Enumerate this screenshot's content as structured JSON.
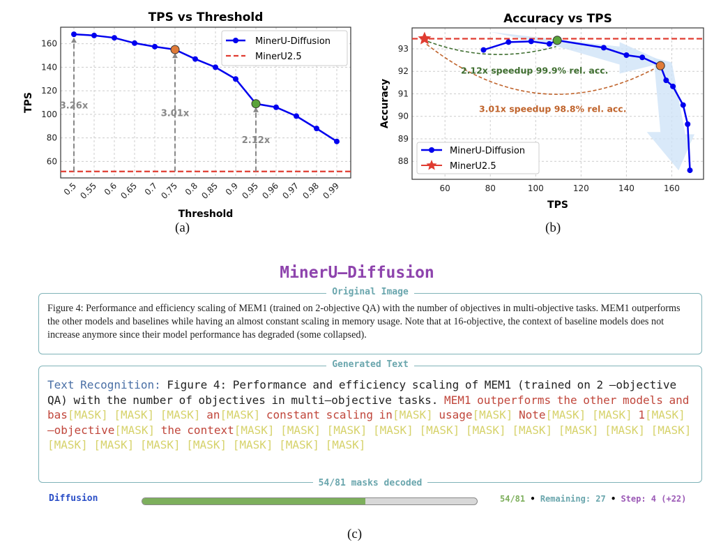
{
  "chart_data": [
    {
      "type": "line",
      "title": "TPS vs Threshold",
      "xlabel": "Threshold",
      "ylabel": "TPS",
      "categories": [
        "0.5",
        "0.55",
        "0.6",
        "0.65",
        "0.7",
        "0.75",
        "0.8",
        "0.85",
        "0.9",
        "0.95",
        "0.96",
        "0.97",
        "0.98",
        "0.99"
      ],
      "series": [
        {
          "name": "MinerU-Diffusion",
          "values": [
            168,
            167,
            165,
            160.5,
            157.5,
            155,
            147,
            140,
            130,
            109,
            106,
            98.5,
            88,
            77
          ],
          "color": "#0000ee"
        }
      ],
      "baseline": {
        "name": "MinerU2.5",
        "value": 51.5,
        "color": "#e03c31"
      },
      "ylim": [
        46,
        174
      ],
      "yticks": [
        60,
        80,
        100,
        120,
        140,
        160
      ],
      "grid": true,
      "legend": "top-right",
      "highlights": [
        {
          "category": "0.5",
          "label": "3.26x",
          "color": "#2222ee"
        },
        {
          "category": "0.75",
          "label": "3.01x",
          "color": "#e07b39"
        },
        {
          "category": "0.95",
          "label": "2.12x",
          "color": "#5aa33a"
        }
      ],
      "caption": "(a)"
    },
    {
      "type": "line",
      "title": "Accuracy vs TPS",
      "xlabel": "TPS",
      "ylabel": "Accuracy",
      "series": [
        {
          "name": "MinerU-Diffusion",
          "x": [
            77,
            88,
            98,
            106,
            109.5,
            130,
            140,
            147,
            155,
            157.5,
            160.5,
            165,
            167,
            168
          ],
          "y": [
            92.95,
            93.3,
            93.33,
            93.22,
            93.38,
            93.05,
            92.72,
            92.62,
            92.25,
            91.6,
            91.33,
            90.5,
            89.65,
            87.6
          ],
          "color": "#0000ee"
        },
        {
          "name": "MinerU2.5",
          "x": [
            51
          ],
          "y": [
            93.45
          ],
          "color": "#e03c31",
          "marker": "star"
        }
      ],
      "xlim": [
        45.5,
        174
      ],
      "ylim": [
        87.2,
        93.93
      ],
      "xticks": [
        60,
        80,
        100,
        120,
        140,
        160
      ],
      "yticks": [
        88,
        89,
        90,
        91,
        92,
        93
      ],
      "grid": true,
      "legend": "bottom-left",
      "annotations": [
        {
          "text": "2.12x speedup 99.9% rel. acc.",
          "color": "#3f6e30",
          "target": [
            109.5,
            93.38
          ]
        },
        {
          "text": "3.01x speedup 98.8% rel. acc.",
          "color": "#c0642c",
          "target": [
            155,
            92.25
          ]
        }
      ],
      "caption": "(b)"
    }
  ],
  "panel": {
    "title": "MinerU–Diffusion",
    "original_label": "Original Image",
    "original_text": "Figure 4: Performance and efficiency scaling of MEM1 (trained on 2-objective QA) with the number of objectives in multi-objective tasks. MEM1 outperforms the other models and baselines while having an almost constant scaling in memory usage. Note that at 16-objective, the context of baseline models does not increase anymore since their model performance has degraded (some collapsed).",
    "generated_label": "Generated Text",
    "prefix": "Text Recognition:",
    "decoded_text": " Figure 4: Performance and efficiency scaling of MEM1 (trained on 2 –objective QA) with the number of objectives in multi–objective tasks. ",
    "segments": [
      [
        "r",
        "MEM1 outperforms the other models and bas"
      ],
      [
        "m",
        "[MASK] [MASK] [MASK] "
      ],
      [
        "r",
        "an"
      ],
      [
        "m",
        "[MASK] "
      ],
      [
        "r",
        "constant scaling in"
      ],
      [
        "m",
        "[MASK] "
      ],
      [
        "r",
        "usage"
      ],
      [
        "m",
        "[MASK] "
      ],
      [
        "r",
        "Note"
      ],
      [
        "m",
        "[MASK] [MASK] "
      ],
      [
        "r",
        "1"
      ],
      [
        "m",
        "[MASK] "
      ],
      [
        "r",
        "–objective"
      ],
      [
        "m",
        "[MASK] "
      ],
      [
        "r",
        "the context"
      ],
      [
        "m",
        "[MASK] [MASK] [MASK] [MASK] [MASK] [MASK] [MASK] [MASK] [MASK] [MASK] [MASK] [MASK] [MASK] [MASK] [MASK] [MASK] [MASK]"
      ]
    ],
    "footer": "54/81 masks decoded",
    "mode": "Diffusion",
    "progress": 0.667,
    "count": "54/81",
    "remaining": "Remaining: 27",
    "step": "Step: 4 (+22)",
    "sep": "•",
    "caption": "(c)"
  }
}
